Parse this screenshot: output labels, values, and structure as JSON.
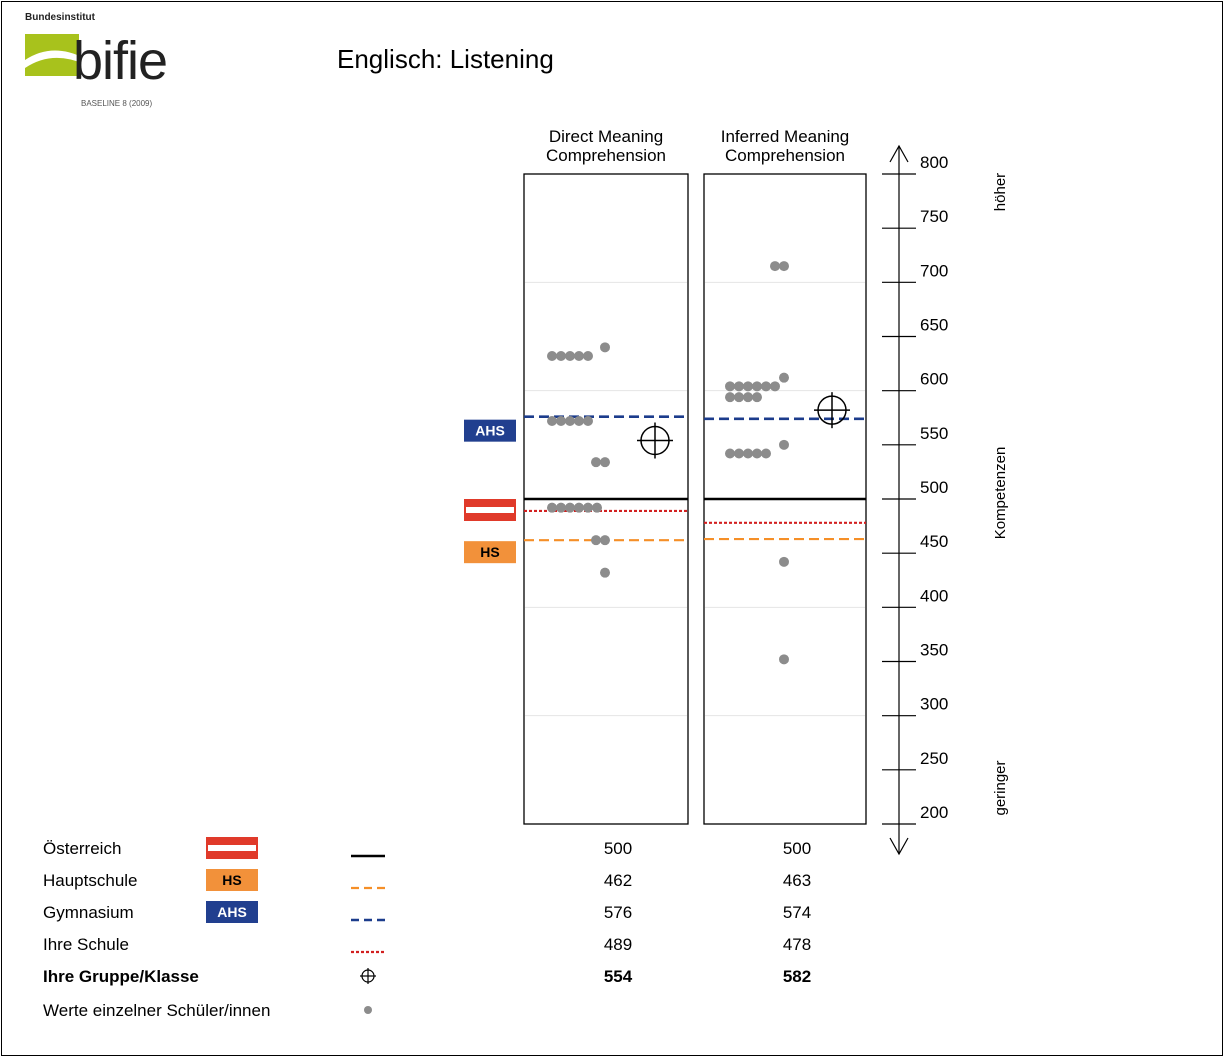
{
  "logo": {
    "org_text": "Bundesinstitut",
    "brand_text": "bifie",
    "sub_text": "BASELINE 8 (2009)",
    "brand_color": "#a8c21c"
  },
  "chart_data": {
    "type": "scatter",
    "title": "Englisch: Listening",
    "panels": [
      {
        "title_lines": [
          "Direct Meaning",
          "Comprehension"
        ],
        "reference_lines": {
          "oesterreich": 500,
          "hauptschule": 462,
          "gymnasium": 576,
          "ihre_schule": 489
        },
        "group_mean": 554,
        "students": [
          632,
          632,
          632,
          632,
          632,
          640,
          572,
          572,
          572,
          572,
          572,
          534,
          534,
          492,
          492,
          492,
          492,
          492,
          492,
          462,
          462,
          432
        ]
      },
      {
        "title_lines": [
          "Inferred Meaning",
          "Comprehension"
        ],
        "reference_lines": {
          "oesterreich": 500,
          "hauptschule": 463,
          "gymnasium": 574,
          "ihre_schule": 478
        },
        "group_mean": 582,
        "students": [
          715,
          715,
          604,
          604,
          604,
          604,
          604,
          604,
          612,
          594,
          594,
          594,
          594,
          542,
          542,
          542,
          542,
          542,
          550,
          442,
          352
        ]
      }
    ],
    "y_axis": {
      "range": [
        200,
        800
      ],
      "ticks": [
        "800",
        "750",
        "700",
        "650",
        "600",
        "550",
        "500",
        "450",
        "400",
        "350",
        "300",
        "250",
        "200"
      ],
      "label": "Kompetenzen",
      "top_label": "höher",
      "bottom_label": "geringer"
    },
    "badges": {
      "ahs": "AHS",
      "hs": "HS"
    },
    "grid": true,
    "legend": {
      "rows": [
        {
          "key": "oesterreich",
          "label": "Österreich",
          "values": [
            "500",
            "500"
          ],
          "bold": false
        },
        {
          "key": "hauptschule",
          "label": "Hauptschule",
          "values": [
            "462",
            "463"
          ],
          "bold": false
        },
        {
          "key": "gymnasium",
          "label": "Gymnasium",
          "values": [
            "576",
            "574"
          ],
          "bold": false
        },
        {
          "key": "ihre_schule",
          "label": "Ihre Schule",
          "values": [
            "489",
            "478"
          ],
          "bold": false
        },
        {
          "key": "gruppe",
          "label": "Ihre Gruppe/Klasse",
          "values": [
            "554",
            "582"
          ],
          "bold": true
        },
        {
          "key": "schueler",
          "label": "Werte einzelner Schüler/innen",
          "values": [],
          "bold": false
        }
      ]
    },
    "colors": {
      "oesterreich": "#000000",
      "hauptschule": "#f58f28",
      "gymnasium": "#1c3c8c",
      "ihre_schule": "#d22020",
      "flag_red": "#e03a2a",
      "points": "#8c8c8c",
      "badge_ahs": "#213f8f",
      "badge_hs": "#f2913a"
    }
  }
}
